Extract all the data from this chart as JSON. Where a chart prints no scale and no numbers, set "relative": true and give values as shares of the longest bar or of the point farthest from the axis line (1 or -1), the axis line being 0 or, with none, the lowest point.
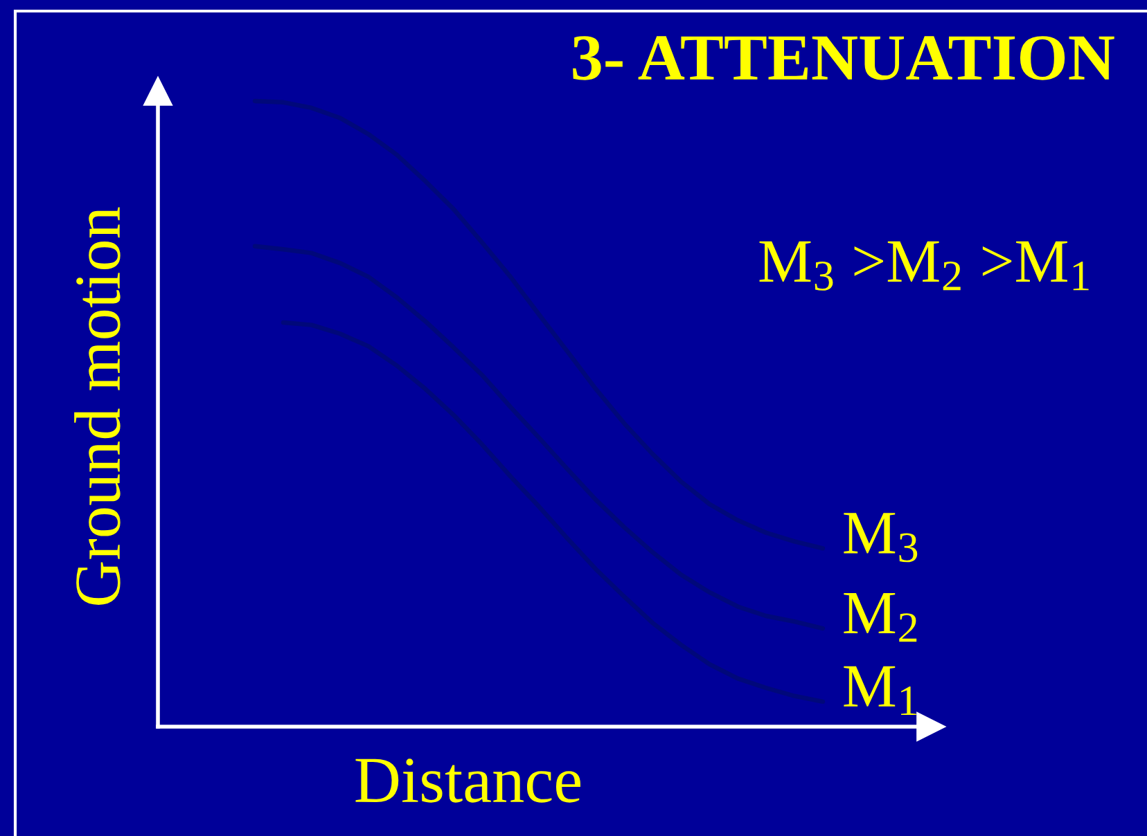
{
  "chart_data": {
    "type": "line",
    "relative": true,
    "title": "3- ATTENUATION",
    "xlabel": "Distance",
    "ylabel": "Ground motion",
    "annotations": [
      "M$_{3}$ >M$_{2}$ >M$_{1}$"
    ],
    "categories": [
      null,
      null,
      null,
      null,
      null,
      null,
      null,
      null,
      null,
      null,
      null,
      null,
      null,
      null,
      null,
      null,
      null,
      null,
      null,
      null,
      null
    ],
    "tick_labels": false,
    "marker": "none",
    "line_style": "solid",
    "series": [
      {
        "name": "M$_{3}$",
        "color": "#00087a",
        "values": [
          1.0,
          0.998,
          0.989,
          0.973,
          0.947,
          0.914,
          0.872,
          0.827,
          0.774,
          0.719,
          0.659,
          0.6,
          0.54,
          0.485,
          0.436,
          0.392,
          0.356,
          0.33,
          0.31,
          0.296,
          0.285
        ]
      },
      {
        "name": "M$_{2}$",
        "color": "#00087a",
        "values": [
          0.768,
          0.763,
          0.757,
          0.741,
          0.719,
          0.686,
          0.648,
          0.606,
          0.562,
          0.511,
          0.462,
          0.412,
          0.363,
          0.319,
          0.279,
          0.243,
          0.215,
          0.192,
          0.177,
          0.168,
          0.157
        ]
      },
      {
        "name": "M$_{1}$",
        "color": "#00087a",
        "values": [
          null,
          0.646,
          0.642,
          0.628,
          0.608,
          0.577,
          0.54,
          0.498,
          0.451,
          0.4,
          0.352,
          0.301,
          0.252,
          0.208,
          0.166,
          0.131,
          0.1,
          0.077,
          0.062,
          0.049,
          0.04
        ]
      }
    ]
  }
}
